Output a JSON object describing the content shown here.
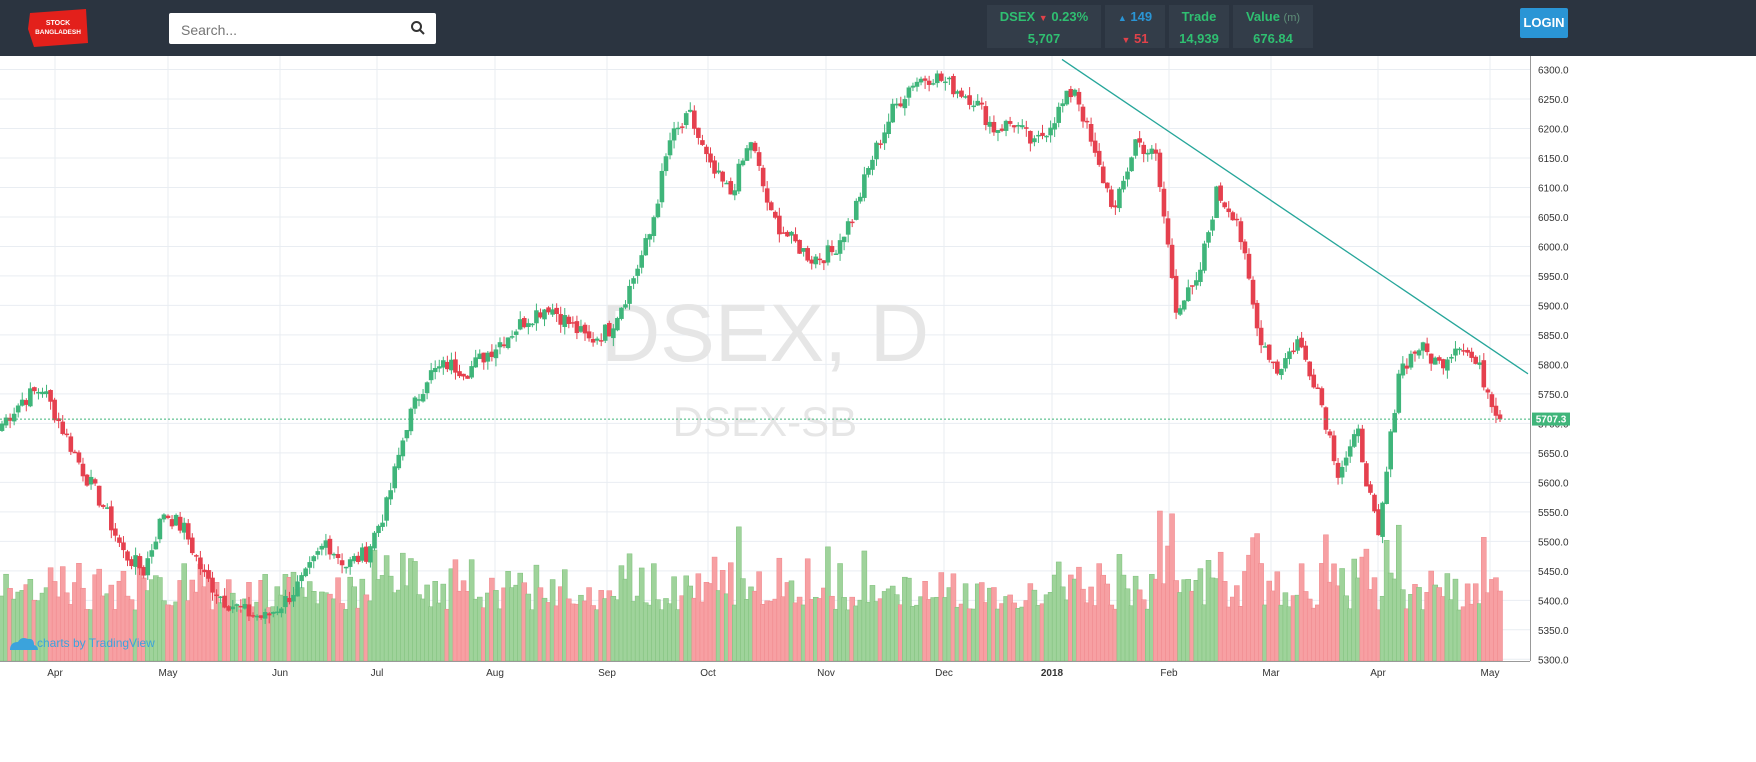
{
  "header": {
    "logo_line1": "STOCK",
    "logo_line2": "BANGLADESH",
    "search_placeholder": "Search...",
    "login_label": "LOGIN",
    "index_name": "DSEX",
    "index_change": "0.23%",
    "index_value": "5,707",
    "advances": "149",
    "declines": "51",
    "trade_label": "Trade",
    "trade_value": "14,939",
    "value_label": "Value",
    "value_unit": "(m)",
    "value_amount": "676.84"
  },
  "colors": {
    "up": "#3fb57a",
    "down": "#e5404e",
    "vol_up": "#9fd39b",
    "vol_down": "#f7a0a3",
    "trendline": "#26a69a",
    "accent": "#2a95d5",
    "topbar": "#2b3440"
  },
  "chart_data": {
    "type": "candlestick",
    "watermark_title": "DSEX, D",
    "watermark_subtitle": "DSEX-SB",
    "credit": "charts by TradingView",
    "last_price_label": "5707.3",
    "last_price": 5707.3,
    "ylim": [
      5290,
      6320
    ],
    "y_ticks": [
      "6300.0",
      "6250.0",
      "6200.0",
      "6150.0",
      "6100.0",
      "6050.0",
      "6000.0",
      "5950.0",
      "5900.0",
      "5850.0",
      "5800.0",
      "5750.0",
      "5700.0",
      "5650.0",
      "5600.0",
      "5550.0",
      "5500.0",
      "5450.0",
      "5400.0",
      "5350.0",
      "5300.0"
    ],
    "x_ticks": [
      "Apr",
      "May",
      "Jun",
      "Jul",
      "Aug",
      "Sep",
      "Oct",
      "Nov",
      "Dec",
      "2018",
      "Feb",
      "Mar",
      "Apr",
      "May"
    ],
    "trendline": [
      {
        "date": "2018-01-03",
        "value": 6317
      },
      {
        "date": "2018-05-09",
        "value": 5784
      }
    ],
    "weekly_closes": [
      5700,
      5740,
      5760,
      5690,
      5620,
      5560,
      5480,
      5450,
      5550,
      5520,
      5440,
      5400,
      5380,
      5370,
      5400,
      5440,
      5500,
      5460,
      5480,
      5560,
      5700,
      5780,
      5800,
      5790,
      5820,
      5850,
      5880,
      5900,
      5870,
      5840,
      5860,
      5930,
      6020,
      6180,
      6220,
      6130,
      6090,
      6180,
      6050,
      6010,
      5980,
      5990,
      6050,
      6150,
      6230,
      6280,
      6290,
      6270,
      6250,
      6200,
      6210,
      6170,
      6220,
      6270,
      6150,
      6060,
      6180,
      6150,
      5900,
      5930,
      6090,
      6050,
      5860,
      5790,
      5840,
      5760,
      5620,
      5680,
      5500,
      5790,
      5830,
      5800,
      5840,
      5790,
      5707
    ],
    "volume_note": "daily turnover bars shown beneath price, colored by candle direction"
  }
}
